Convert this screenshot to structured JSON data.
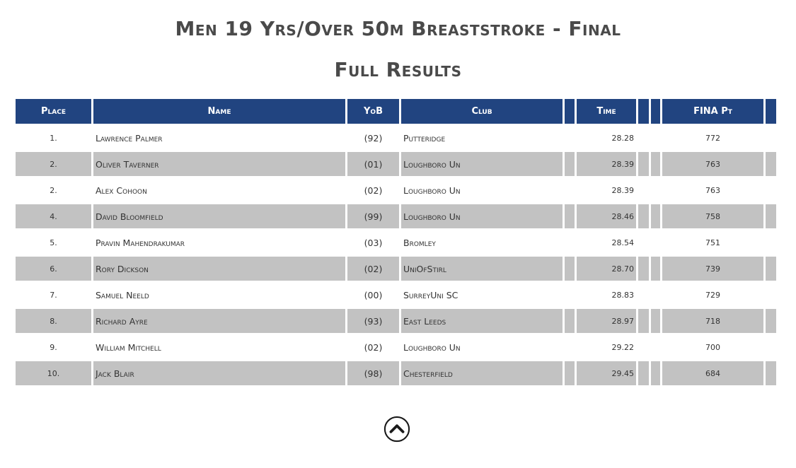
{
  "title": "Men 19 Yrs/Over 50m Breaststroke - Final",
  "subtitle": "Full Results",
  "columns": {
    "place": "Place",
    "name": "Name",
    "yob": "YoB",
    "club": "Club",
    "time": "Time",
    "points": "FINA Pt"
  },
  "rows": [
    {
      "place": "1.",
      "name": "Lawrence Palmer",
      "yob": "(92)",
      "club": "Putteridge",
      "time": "28.28",
      "points": "772"
    },
    {
      "place": "2.",
      "name": "Oliver Taverner",
      "yob": "(01)",
      "club": "Loughboro Un",
      "time": "28.39",
      "points": "763"
    },
    {
      "place": "2.",
      "name": "Alex Cohoon",
      "yob": "(02)",
      "club": "Loughboro Un",
      "time": "28.39",
      "points": "763"
    },
    {
      "place": "4.",
      "name": "David Bloomfield",
      "yob": "(99)",
      "club": "Loughboro Un",
      "time": "28.46",
      "points": "758"
    },
    {
      "place": "5.",
      "name": "Pravin Mahendrakumar",
      "yob": "(03)",
      "club": "Bromley",
      "time": "28.54",
      "points": "751"
    },
    {
      "place": "6.",
      "name": "Rory Dickson",
      "yob": "(02)",
      "club": "UniOfStirl",
      "time": "28.70",
      "points": "739"
    },
    {
      "place": "7.",
      "name": "Samuel Neeld",
      "yob": "(00)",
      "club": "SurreyUni SC",
      "time": "28.83",
      "points": "729"
    },
    {
      "place": "8.",
      "name": "Richard Ayre",
      "yob": "(93)",
      "club": "East Leeds",
      "time": "28.97",
      "points": "718"
    },
    {
      "place": "9.",
      "name": "William Mitchell",
      "yob": "(02)",
      "club": "Loughboro Un",
      "time": "29.22",
      "points": "700"
    },
    {
      "place": "10.",
      "name": "Jack Blair",
      "yob": "(98)",
      "club": "Chesterfield",
      "time": "29.45",
      "points": "684"
    }
  ],
  "back_to_top_icon": "chevron-up-circle-icon",
  "colors": {
    "header_bg": "#214480",
    "stripe": "#c2c2c2",
    "title": "#4a4a4a"
  }
}
